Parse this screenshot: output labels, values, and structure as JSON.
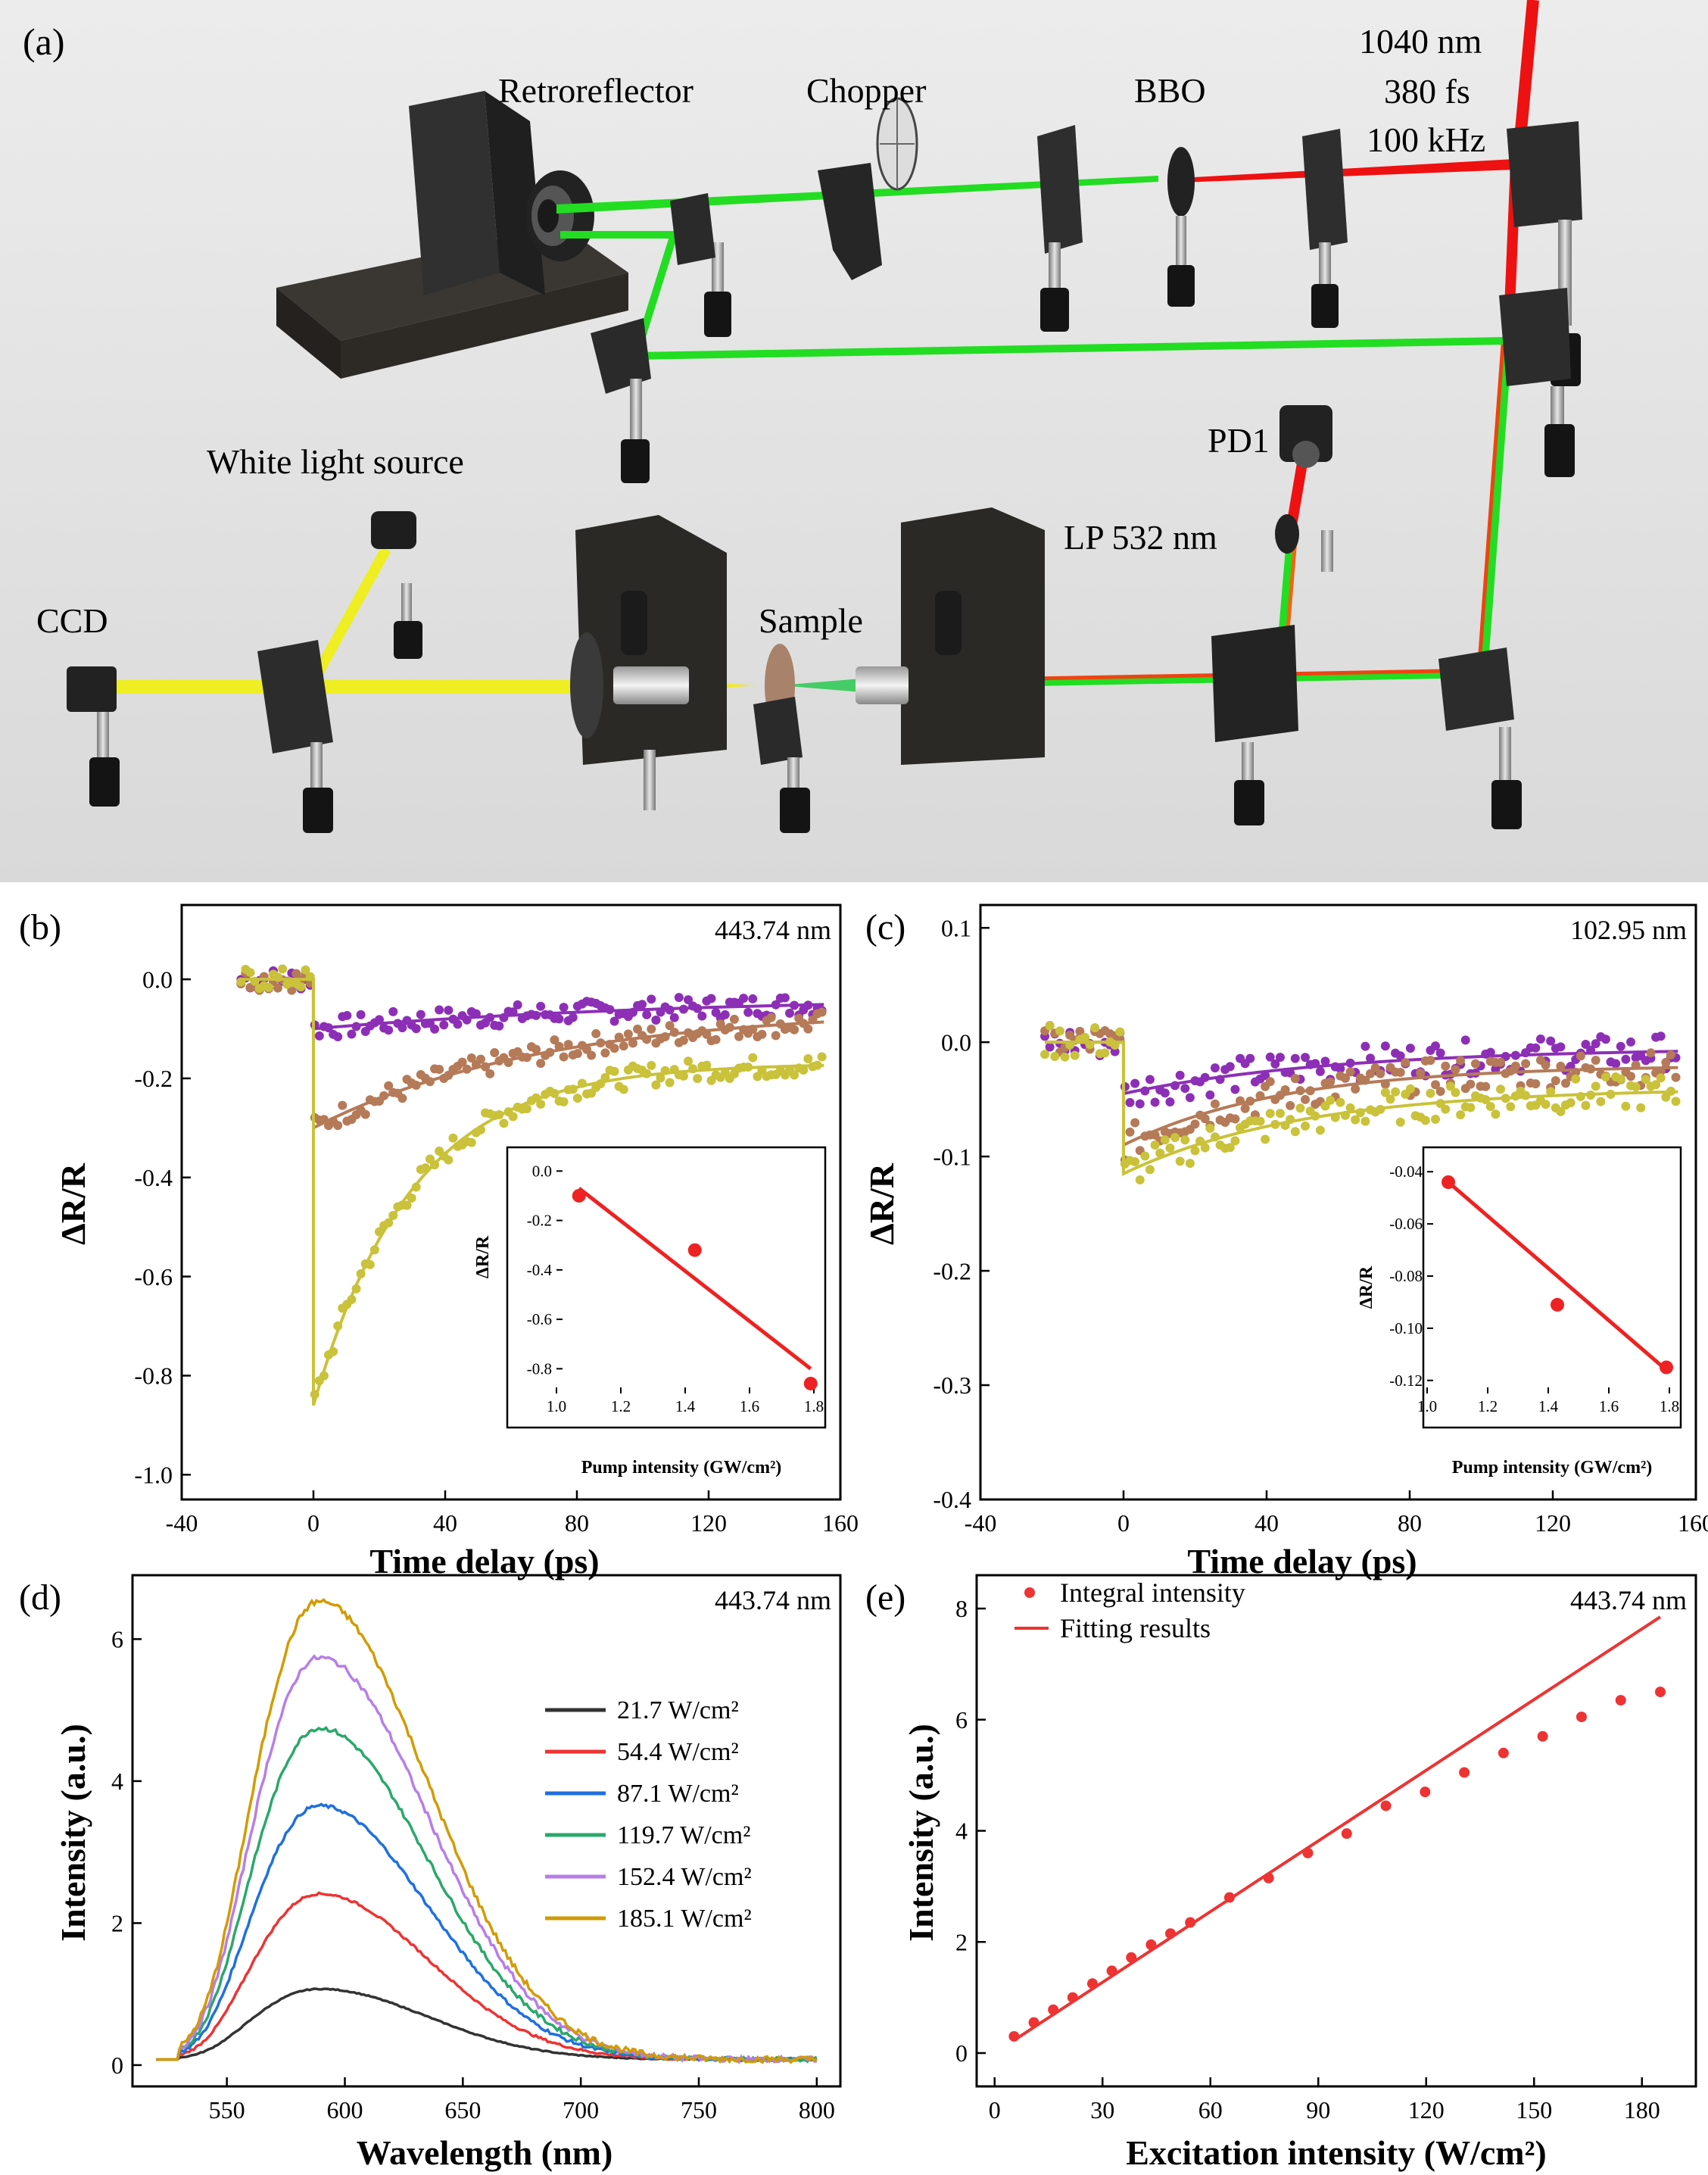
{
  "panel_a": {
    "label": "(a)",
    "texts": {
      "retro": "Retroreflector",
      "chopper": "Chopper",
      "bbo": "BBO",
      "laser_wl": "1040 nm",
      "laser_pulse": "380 fs",
      "laser_rep": "100 kHz",
      "white": "White light source",
      "pd1": "PD1",
      "lp": "LP 532 nm",
      "ccd": "CCD",
      "sample": "Sample"
    },
    "colors": {
      "ir_beam": "#ee1111",
      "green_beam": "#22dd22",
      "white_beam": "#eeee22",
      "mount": "#2c2c2c"
    }
  },
  "chart_data": [
    {
      "id": "b",
      "label": "(b)",
      "type": "scatter",
      "annotation": "443.74 nm",
      "xlabel": "Time delay (ps)",
      "ylabel": "ΔR/R",
      "xlim": [
        -40,
        160
      ],
      "ylim": [
        -1.05,
        0.15
      ],
      "xticks": [
        "-40",
        "0",
        "40",
        "80",
        "120",
        "160"
      ],
      "yticks": [
        "-1.0",
        "-0.8",
        "-0.6",
        "-0.4",
        "-0.2",
        "0.0"
      ],
      "series": [
        {
          "color": "#8d2fb6",
          "fit": {
            "pre": 0.0,
            "A": -0.1,
            "tau": 110,
            "C": -0.035,
            "t0": 0
          }
        },
        {
          "color": "#b57a58",
          "fit": {
            "pre": 0.0,
            "A": -0.3,
            "tau": 70,
            "C": -0.06,
            "t0": 0
          }
        },
        {
          "color": "#c9c23a",
          "fit": {
            "pre": 0.0,
            "A": -0.86,
            "tau": 30,
            "C": -0.17,
            "t0": 0
          }
        }
      ],
      "inset": {
        "xlabel": "Pump intensity (GW/cm²)",
        "ylabel": "ΔR/R",
        "xlim": [
          1.0,
          1.8
        ],
        "ylim": [
          -0.9,
          0.05
        ],
        "xticks": [
          "1.0",
          "1.2",
          "1.4",
          "1.6",
          "1.8"
        ],
        "yticks": [
          "-0.8",
          "-0.6",
          "-0.4",
          "-0.2",
          "0.0"
        ],
        "points": {
          "x": [
            1.07,
            1.43,
            1.79
          ],
          "y": [
            -0.1,
            -0.32,
            -0.86
          ]
        },
        "line": {
          "x": [
            1.07,
            1.79
          ],
          "y": [
            -0.07,
            -0.8
          ]
        },
        "color": "#ee2222"
      }
    },
    {
      "id": "c",
      "label": "(c)",
      "type": "scatter",
      "annotation": "102.95 nm",
      "xlabel": "Time delay (ps)",
      "ylabel": "ΔR/R",
      "xlim": [
        -40,
        160
      ],
      "ylim": [
        -0.4,
        0.12
      ],
      "xticks": [
        "-40",
        "0",
        "40",
        "80",
        "120",
        "160"
      ],
      "yticks": [
        "-0.4",
        "-0.3",
        "-0.2",
        "-0.1",
        "0.0",
        "0.1"
      ],
      "series": [
        {
          "color": "#8d2fb6",
          "fit": {
            "pre": 0.0,
            "A": -0.045,
            "tau": 60,
            "C": -0.005,
            "t0": 0
          }
        },
        {
          "color": "#b57a58",
          "fit": {
            "pre": 0.0,
            "A": -0.09,
            "tau": 45,
            "C": -0.02,
            "t0": 0
          }
        },
        {
          "color": "#c9c23a",
          "fit": {
            "pre": 0.0,
            "A": -0.115,
            "tau": 50,
            "C": -0.04,
            "t0": 0
          }
        }
      ],
      "inset": {
        "xlabel": "Pump intensity (GW/cm²)",
        "ylabel": "ΔR/R",
        "xlim": [
          1.0,
          1.8
        ],
        "ylim": [
          -0.125,
          -0.035
        ],
        "xticks": [
          "1.0",
          "1.2",
          "1.4",
          "1.6",
          "1.8"
        ],
        "yticks": [
          "-0.12",
          "-0.10",
          "-0.08",
          "-0.06",
          "-0.04"
        ],
        "points": {
          "x": [
            1.07,
            1.43,
            1.79
          ],
          "y": [
            -0.044,
            -0.091,
            -0.115
          ]
        },
        "line": {
          "x": [
            1.07,
            1.79
          ],
          "y": [
            -0.044,
            -0.116
          ]
        },
        "color": "#ee2222"
      }
    },
    {
      "id": "d",
      "label": "(d)",
      "type": "line",
      "annotation": "443.74 nm",
      "xlabel": "Wavelength (nm)",
      "ylabel": "Intensity (a.u.)",
      "xlim": [
        510,
        810
      ],
      "ylim": [
        -0.3,
        6.9
      ],
      "xticks": [
        "550",
        "600",
        "650",
        "700",
        "750",
        "800"
      ],
      "yticks": [
        "0",
        "2",
        "4",
        "6"
      ],
      "peak_nm": 588,
      "series": [
        {
          "name": "21.7 W/cm²",
          "color": "#333333",
          "peak": 1.0
        },
        {
          "name": "54.4 W/cm²",
          "color": "#ee3333",
          "peak": 2.35
        },
        {
          "name": "87.1 W/cm²",
          "color": "#1f6fe0",
          "peak": 3.6
        },
        {
          "name": "119.7 W/cm²",
          "color": "#2aa86a",
          "peak": 4.7
        },
        {
          "name": "152.4 W/cm²",
          "color": "#b77ee8",
          "peak": 5.7
        },
        {
          "name": "185.1 W/cm²",
          "color": "#d29b00",
          "peak": 6.5
        }
      ]
    },
    {
      "id": "e",
      "label": "(e)",
      "type": "scatter",
      "annotation": "443.74 nm",
      "xlabel": "Excitation intensity (W/cm²)",
      "ylabel": "Intensity (a.u.)",
      "xlim": [
        -5,
        195
      ],
      "ylim": [
        -0.6,
        8.6
      ],
      "xticks": [
        "0",
        "30",
        "60",
        "90",
        "120",
        "150",
        "180"
      ],
      "yticks": [
        "0",
        "2",
        "4",
        "6",
        "8"
      ],
      "legend": {
        "points": "Integral intensity",
        "line": "Fitting results"
      },
      "color": "#ee3333",
      "points": {
        "x": [
          5.4,
          10.9,
          16.3,
          21.7,
          27.2,
          32.6,
          38.0,
          43.5,
          48.9,
          54.4,
          65.3,
          76.2,
          87.1,
          97.9,
          108.8,
          119.7,
          130.6,
          141.5,
          152.4,
          163.2,
          174.1,
          185.1
        ],
        "y": [
          0.3,
          0.55,
          0.78,
          1.0,
          1.25,
          1.48,
          1.72,
          1.95,
          2.15,
          2.35,
          2.8,
          3.15,
          3.6,
          3.95,
          4.45,
          4.7,
          5.05,
          5.4,
          5.7,
          6.05,
          6.35,
          6.5
        ]
      },
      "line": {
        "x": [
          5.4,
          185.1
        ],
        "y": [
          0.23,
          7.85
        ]
      }
    }
  ]
}
